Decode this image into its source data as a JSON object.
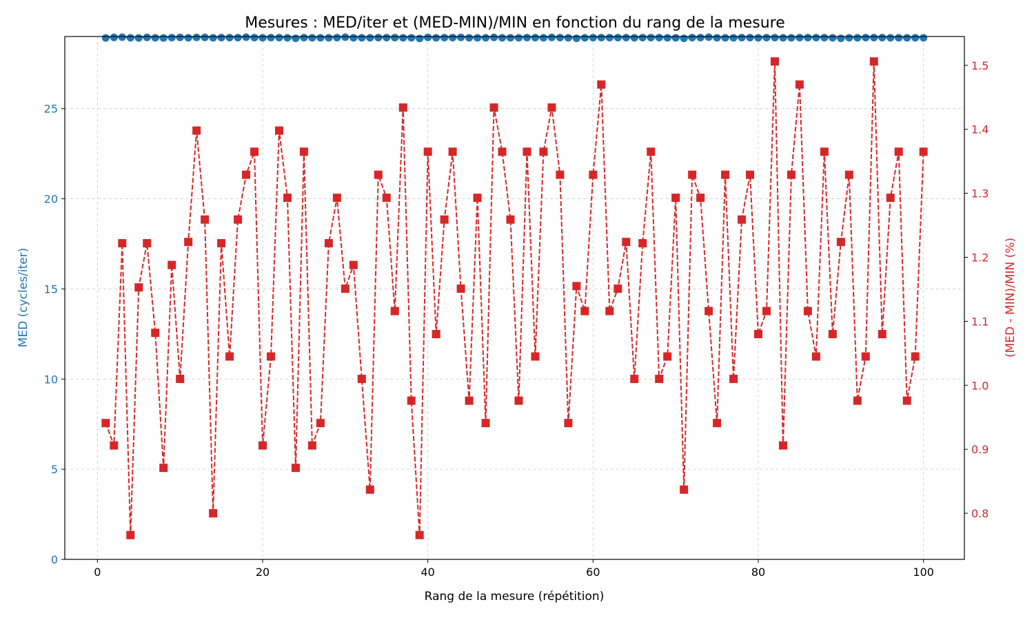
{
  "chart_data": {
    "type": "line",
    "title": "Mesures : MED/iter et (MED-MIN)/MIN en fonction du rang de la mesure",
    "xlabel": "Rang de la mesure (répétition)",
    "ylabel_left": "MED (cycles/iter)",
    "ylabel_right": "(MED - MIN)/MIN (%)",
    "xlim": [
      -3.95,
      104.95
    ],
    "ylim_left": [
      0,
      29.0
    ],
    "ylim_right": [
      0.728,
      1.545
    ],
    "x_ticks": [
      0,
      20,
      40,
      60,
      80,
      100
    ],
    "y_left_ticks": [
      0,
      5,
      10,
      15,
      20,
      25
    ],
    "y_right_ticks": [
      0.8,
      0.9,
      1.0,
      1.1,
      1.2,
      1.3,
      1.4,
      1.5
    ],
    "grid": true,
    "colors": {
      "left": "#1f77b4",
      "right": "#d62728"
    },
    "x": [
      1,
      2,
      3,
      4,
      5,
      6,
      7,
      8,
      9,
      10,
      11,
      12,
      13,
      14,
      15,
      16,
      17,
      18,
      19,
      20,
      21,
      22,
      23,
      24,
      25,
      26,
      27,
      28,
      29,
      30,
      31,
      32,
      33,
      34,
      35,
      36,
      37,
      38,
      39,
      40,
      41,
      42,
      43,
      44,
      45,
      46,
      47,
      48,
      49,
      50,
      51,
      52,
      53,
      54,
      55,
      56,
      57,
      58,
      59,
      60,
      61,
      62,
      63,
      64,
      65,
      66,
      67,
      68,
      69,
      70,
      71,
      72,
      73,
      74,
      75,
      76,
      77,
      78,
      79,
      80,
      81,
      82,
      83,
      84,
      85,
      86,
      87,
      88,
      89,
      90,
      91,
      92,
      93,
      94,
      95,
      96,
      97,
      98,
      99,
      100
    ],
    "series": [
      {
        "axis": "left",
        "marker": "circle",
        "line": "solid",
        "values": [
          28.92,
          28.95,
          28.96,
          28.93,
          28.92,
          28.95,
          28.93,
          28.92,
          28.94,
          28.95,
          28.93,
          28.95,
          28.95,
          28.93,
          28.94,
          28.94,
          28.94,
          28.96,
          28.94,
          28.93,
          28.94,
          28.94,
          28.93,
          28.9,
          28.94,
          28.93,
          28.93,
          28.93,
          28.94,
          28.96,
          28.93,
          28.93,
          28.93,
          28.94,
          28.94,
          28.94,
          28.93,
          28.93,
          28.89,
          28.95,
          28.93,
          28.94,
          28.94,
          28.95,
          28.93,
          28.93,
          28.93,
          28.95,
          28.93,
          28.93,
          28.93,
          28.94,
          28.94,
          28.93,
          28.95,
          28.94,
          28.93,
          28.9,
          28.93,
          28.94,
          28.94,
          28.94,
          28.94,
          28.94,
          28.93,
          28.94,
          28.94,
          28.94,
          28.93,
          28.93,
          28.9,
          28.94,
          28.94,
          28.96,
          28.93,
          28.93,
          28.93,
          28.94,
          28.94,
          28.93,
          28.94,
          28.94,
          28.93,
          28.93,
          28.94,
          28.94,
          28.94,
          28.94,
          28.93,
          28.9,
          28.93,
          28.93,
          28.94,
          28.94,
          28.94,
          28.93,
          28.93,
          28.93,
          28.93,
          28.93
        ]
      },
      {
        "axis": "right",
        "marker": "square",
        "line": "dashed",
        "values": [
          0.941,
          0.906,
          1.222,
          0.766,
          1.153,
          1.222,
          1.082,
          0.871,
          1.188,
          1.01,
          1.224,
          1.398,
          1.259,
          0.8,
          1.222,
          1.045,
          1.259,
          1.329,
          1.365,
          0.906,
          1.045,
          1.398,
          1.293,
          0.871,
          1.365,
          0.906,
          0.941,
          1.222,
          1.293,
          1.151,
          1.188,
          1.01,
          0.837,
          1.329,
          1.293,
          1.116,
          1.434,
          0.976,
          0.766,
          1.365,
          1.08,
          1.259,
          1.365,
          1.151,
          0.976,
          1.293,
          0.941,
          1.434,
          1.365,
          1.259,
          0.976,
          1.365,
          1.045,
          1.365,
          1.434,
          1.329,
          0.941,
          1.155,
          1.116,
          1.329,
          1.47,
          1.116,
          1.151,
          1.224,
          1.01,
          1.222,
          1.365,
          1.01,
          1.045,
          1.293,
          0.837,
          1.329,
          1.293,
          1.116,
          0.941,
          1.329,
          1.01,
          1.259,
          1.329,
          1.08,
          1.116,
          1.506,
          0.906,
          1.329,
          1.47,
          1.116,
          1.045,
          1.365,
          1.08,
          1.224,
          1.329,
          0.976,
          1.045,
          1.506,
          1.08,
          1.293,
          1.365,
          0.976,
          1.045,
          1.365
        ]
      }
    ]
  }
}
